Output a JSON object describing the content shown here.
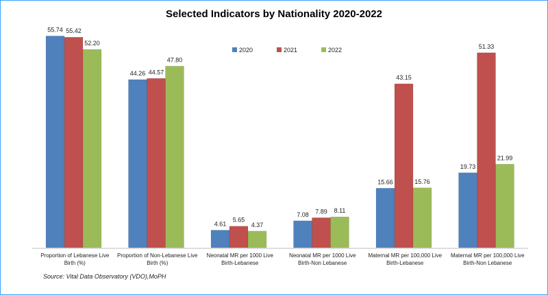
{
  "chart_data": {
    "type": "bar",
    "title": "Selected Indicators by Nationality 2020-2022",
    "categories": [
      [
        "Proportion of Lebanese Live",
        "Birth (%)"
      ],
      [
        "Proportion of Non-Lebanese Live",
        "Birth (%)"
      ],
      [
        "Neonatal MR per 1000 Live",
        "Birth-Lebanese"
      ],
      [
        "Neonatal MR per 1000 Live",
        "Birth-Non Lebanese"
      ],
      [
        "Maternal MR per 100,000 Live",
        "Birth-Lebanese"
      ],
      [
        "Maternal MR per 100,000 Live",
        "Birth-Non Lebanese"
      ]
    ],
    "series": [
      {
        "name": "2020",
        "color": "#4f81bd",
        "values": [
          55.74,
          44.26,
          4.61,
          7.08,
          15.66,
          19.73
        ]
      },
      {
        "name": "2021",
        "color": "#c0504d",
        "values": [
          55.42,
          44.57,
          5.65,
          7.89,
          43.15,
          51.33
        ]
      },
      {
        "name": "2022",
        "color": "#9bbb59",
        "values": [
          52.2,
          47.8,
          4.37,
          8.11,
          15.76,
          21.99
        ]
      }
    ],
    "value_labels": [
      [
        "55.74",
        "44.26",
        "4.61",
        "7.08",
        "15.66",
        "19.73"
      ],
      [
        "55.42",
        "44.57",
        "5.65",
        "7.89",
        "43.15",
        "51.33"
      ],
      [
        "52.20",
        "47.80",
        "4.37",
        "8.11",
        "15.76",
        "21.99"
      ]
    ],
    "ylim": [
      0,
      56
    ],
    "legend_position": "top-right",
    "grid": false
  },
  "source": "Source: Vital Data Observatory (VDO),MoPH"
}
